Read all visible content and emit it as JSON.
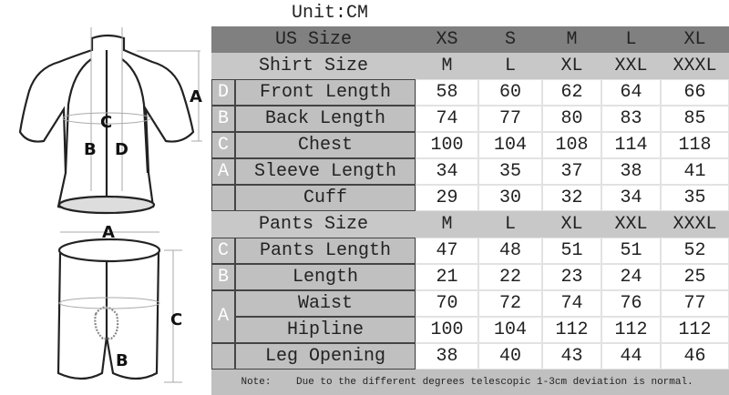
{
  "unit": "Unit:CM",
  "us_size": {
    "label": "US Size",
    "sizes": [
      "XS",
      "S",
      "M",
      "L",
      "XL"
    ]
  },
  "shirt": {
    "label": "Shirt Size",
    "sizes": [
      "M",
      "L",
      "XL",
      "XXL",
      "XXXL"
    ],
    "rows": [
      {
        "letter": "D",
        "label": "Front Length",
        "values": [
          "58",
          "60",
          "62",
          "64",
          "66"
        ]
      },
      {
        "letter": "B",
        "label": "Back Length",
        "values": [
          "74",
          "77",
          "80",
          "83",
          "85"
        ]
      },
      {
        "letter": "C",
        "label": "Chest",
        "values": [
          "100",
          "104",
          "108",
          "114",
          "118"
        ]
      },
      {
        "letter": "A",
        "label": "Sleeve Length",
        "values": [
          "34",
          "35",
          "37",
          "38",
          "41"
        ]
      },
      {
        "letter": "",
        "label": "Cuff",
        "values": [
          "29",
          "30",
          "32",
          "34",
          "35"
        ]
      }
    ]
  },
  "pants": {
    "label": "Pants Size",
    "sizes": [
      "M",
      "L",
      "XL",
      "XXL",
      "XXXL"
    ],
    "rows": [
      {
        "letter": "C",
        "label": "Pants Length",
        "values": [
          "47",
          "48",
          "51",
          "51",
          "52"
        ]
      },
      {
        "letter": "B",
        "label": "Length",
        "values": [
          "21",
          "22",
          "23",
          "24",
          "25"
        ]
      },
      {
        "letter": "A",
        "label": "Waist",
        "values": [
          "70",
          "72",
          "74",
          "76",
          "77"
        ]
      },
      {
        "letter": "",
        "label": "Hipline",
        "values": [
          "100",
          "104",
          "112",
          "112",
          "112"
        ]
      },
      {
        "letter": "",
        "label": "Leg Opening",
        "values": [
          "38",
          "40",
          "43",
          "44",
          "46"
        ]
      }
    ]
  },
  "note": {
    "label": "Note:",
    "text": "Due to the different degrees telescopic 1-3cm deviation is normal."
  },
  "illustration": {
    "jersey_labels": [
      "A",
      "B",
      "C",
      "D"
    ],
    "shorts_labels": [
      "A",
      "B",
      "C"
    ]
  }
}
